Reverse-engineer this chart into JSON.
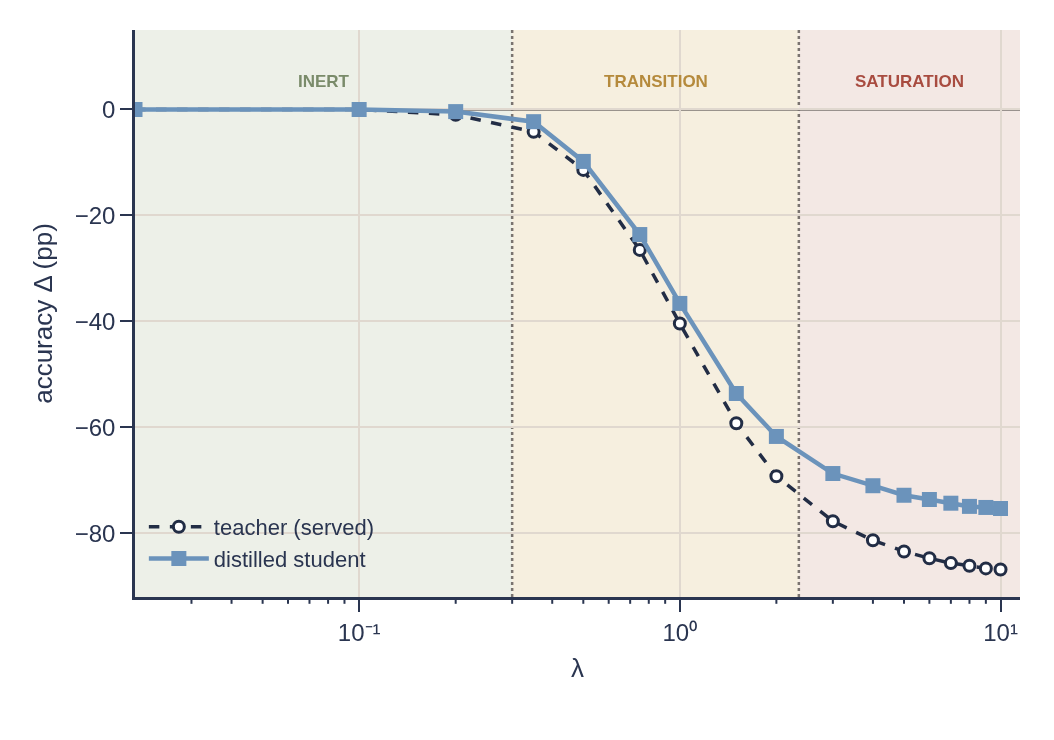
{
  "chart_data": {
    "type": "line",
    "xlabel": "λ",
    "ylabel": "accuracy Δ (pp)",
    "log": "x",
    "xlim": [
      0.02,
      11.5
    ],
    "ylim": [
      -92,
      15
    ],
    "xticks": [
      {
        "value": 0.03,
        "label": null
      },
      {
        "value": 0.04,
        "label": null
      },
      {
        "value": 0.05,
        "label": null
      },
      {
        "value": 0.06,
        "label": null
      },
      {
        "value": 0.07,
        "label": null
      },
      {
        "value": 0.08,
        "label": null
      },
      {
        "value": 0.09,
        "label": null
      },
      {
        "value": 0.1,
        "label": "10⁻¹"
      },
      {
        "value": 0.2,
        "label": null
      },
      {
        "value": 0.3,
        "label": null
      },
      {
        "value": 0.4,
        "label": null
      },
      {
        "value": 0.5,
        "label": null
      },
      {
        "value": 0.6,
        "label": null
      },
      {
        "value": 0.7,
        "label": null
      },
      {
        "value": 0.8,
        "label": null
      },
      {
        "value": 0.9,
        "label": null
      },
      {
        "value": 1,
        "label": "10⁰"
      },
      {
        "value": 2,
        "label": null
      },
      {
        "value": 3,
        "label": null
      },
      {
        "value": 4,
        "label": null
      },
      {
        "value": 5,
        "label": null
      },
      {
        "value": 6,
        "label": null
      },
      {
        "value": 7,
        "label": null
      },
      {
        "value": 8,
        "label": null
      },
      {
        "value": 9,
        "label": null
      },
      {
        "value": 10,
        "label": "10¹"
      }
    ],
    "yticks": [
      0,
      -20,
      -40,
      -60,
      -80
    ],
    "grid": true,
    "legend": "bottom left",
    "x": [
      0.02,
      0.1,
      0.2,
      0.35,
      0.5,
      0.75,
      1,
      1.5,
      2,
      3,
      4,
      5,
      6,
      7,
      8,
      9,
      10
    ],
    "series": [
      {
        "name": "teacher (served)",
        "color": "#222d45",
        "marker": "circle",
        "line_style": "dashed",
        "values": [
          0,
          0,
          -1,
          -4.2,
          -11.4,
          -26.5,
          -40.4,
          -59.2,
          -69.2,
          -77.7,
          -81.3,
          -83.4,
          -84.7,
          -85.6,
          -86.1,
          -86.6,
          -86.8
        ]
      },
      {
        "name": "distilled student",
        "color": "#6b93bb",
        "marker": "square",
        "line_style": "solid",
        "values": [
          0,
          0,
          -0.4,
          -2.3,
          -9.8,
          -23.6,
          -36.6,
          -53.6,
          -61.7,
          -68.7,
          -71,
          -72.8,
          -73.6,
          -74.3,
          -74.9,
          -75.1,
          -75.3
        ]
      }
    ],
    "ref_lines": [
      {
        "axis": "y",
        "value": 0,
        "color": "#7a7470",
        "line_style": "solid"
      },
      {
        "axis": "x",
        "value": 0.3,
        "color": "#7a7470",
        "line_style": "dotted"
      },
      {
        "axis": "x",
        "value": 2.35,
        "color": "#7a7470",
        "line_style": "dotted"
      }
    ],
    "bands": [
      {
        "axis": "x",
        "from": 0.02,
        "to": 0.3,
        "label": "INERT",
        "color": "#edf0e8"
      },
      {
        "axis": "x",
        "from": 0.3,
        "to": 2.35,
        "label": "TRANSITION",
        "color": "#f6efdf"
      },
      {
        "axis": "x",
        "from": 2.35,
        "to": 11.5,
        "label": "SATURATION",
        "color": "#f3e8e4"
      }
    ]
  }
}
